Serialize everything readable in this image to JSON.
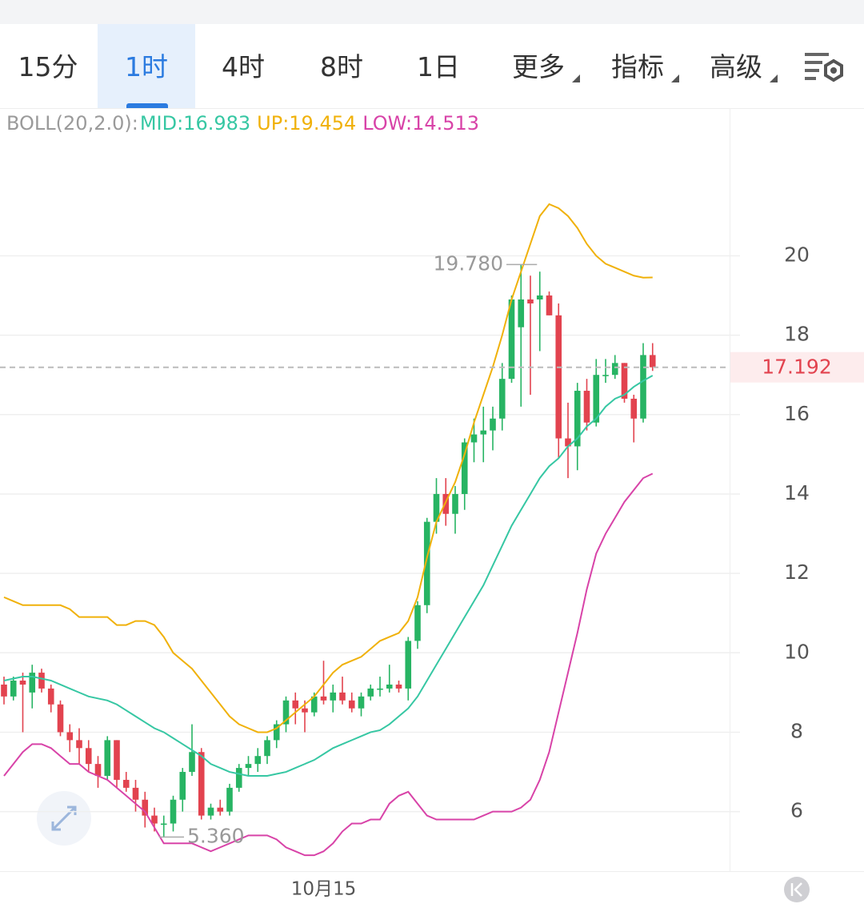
{
  "tabs": {
    "items": [
      "15分",
      "1时",
      "4时",
      "8时",
      "1日",
      "更多",
      "指标",
      "高级"
    ],
    "active": 1
  },
  "chart_data": {
    "type": "candlestick",
    "indicator": "BOLL(20,2.0):",
    "categories": [
      null,
      null,
      null,
      null,
      null,
      null,
      null,
      null,
      null,
      null,
      null,
      null,
      null,
      null,
      null,
      null,
      null,
      null,
      null,
      null,
      null,
      null,
      null,
      null,
      null,
      null,
      null,
      null,
      null,
      null,
      null,
      null,
      null,
      null,
      "10月15",
      null,
      null,
      null,
      null,
      null,
      null,
      null,
      null,
      null,
      null,
      null,
      null,
      null,
      null,
      null,
      null,
      null,
      null,
      null,
      null,
      null,
      null,
      null,
      null,
      null,
      null,
      null,
      null,
      null,
      null,
      null,
      null,
      null,
      null,
      null
    ],
    "open": [
      9.2,
      8.9,
      9.3,
      9.0,
      9.5,
      9.1,
      8.7,
      8.0,
      7.8,
      7.6,
      7.2,
      6.9,
      7.8,
      6.8,
      6.6,
      6.3,
      5.9,
      5.7,
      5.7,
      6.3,
      7.0,
      7.5,
      5.9,
      6.1,
      6.0,
      6.6,
      7.1,
      7.2,
      7.4,
      7.8,
      8.2,
      8.8,
      8.6,
      8.5,
      8.9,
      8.8,
      9.0,
      8.8,
      8.6,
      8.9,
      9.1,
      9.1,
      9.2,
      9.1,
      10.3,
      11.2,
      13.3,
      14.0,
      13.5,
      14.0,
      15.3,
      15.5,
      15.6,
      15.9,
      16.9,
      18.2,
      18.9,
      18.9,
      19.0,
      18.5,
      15.4,
      15.2,
      16.6,
      15.8,
      17.0,
      17.0,
      17.3,
      16.4,
      15.9,
      17.5
    ],
    "high": [
      9.4,
      9.4,
      9.5,
      9.7,
      9.6,
      9.2,
      8.8,
      8.2,
      8.1,
      7.8,
      7.4,
      7.9,
      7.8,
      7.0,
      6.8,
      6.5,
      6.1,
      5.9,
      6.4,
      7.1,
      8.2,
      7.6,
      6.2,
      6.3,
      6.7,
      7.2,
      7.4,
      7.6,
      7.9,
      8.3,
      8.9,
      9.0,
      8.8,
      9.0,
      9.8,
      9.2,
      9.4,
      9.0,
      9.0,
      9.2,
      9.4,
      9.7,
      9.3,
      10.4,
      11.3,
      13.4,
      14.4,
      14.4,
      14.2,
      15.4,
      15.9,
      16.2,
      16.2,
      17.3,
      19.0,
      19.78,
      19.5,
      19.6,
      19.1,
      18.8,
      16.3,
      16.8,
      16.9,
      17.4,
      17.4,
      17.5,
      17.3,
      16.5,
      17.8,
      17.8
    ],
    "low": [
      8.7,
      8.8,
      8.0,
      8.6,
      9.0,
      8.5,
      7.9,
      7.5,
      7.2,
      7.0,
      6.6,
      6.8,
      6.6,
      6.5,
      6.0,
      5.6,
      5.5,
      5.36,
      5.5,
      6.0,
      6.9,
      5.8,
      5.8,
      5.9,
      5.9,
      6.5,
      6.9,
      7.0,
      7.2,
      7.6,
      8.0,
      8.2,
      8.0,
      8.4,
      8.7,
      8.5,
      8.7,
      8.5,
      8.4,
      8.8,
      8.9,
      9.0,
      9.0,
      8.8,
      10.1,
      11.0,
      13.0,
      13.2,
      13.0,
      13.6,
      14.8,
      14.8,
      15.1,
      15.6,
      16.8,
      16.2,
      16.5,
      17.6,
      18.5,
      14.9,
      14.4,
      14.6,
      15.6,
      15.7,
      16.8,
      16.9,
      16.3,
      15.3,
      15.8,
      17.1
    ],
    "close": [
      8.9,
      9.3,
      9.2,
      9.5,
      9.1,
      8.7,
      8.0,
      7.8,
      7.6,
      7.2,
      6.9,
      7.8,
      6.8,
      6.6,
      6.3,
      5.9,
      5.7,
      5.7,
      6.3,
      7.0,
      7.5,
      5.9,
      6.1,
      6.0,
      6.6,
      7.1,
      7.2,
      7.4,
      7.8,
      8.2,
      8.8,
      8.6,
      8.5,
      8.9,
      8.8,
      9.0,
      8.8,
      8.6,
      8.9,
      9.1,
      9.1,
      9.2,
      9.1,
      10.3,
      11.2,
      13.3,
      14.0,
      13.5,
      14.0,
      15.3,
      15.5,
      15.6,
      15.9,
      16.9,
      18.9,
      18.9,
      18.8,
      19.0,
      18.5,
      15.4,
      15.2,
      16.6,
      15.8,
      17.0,
      17.0,
      17.3,
      16.4,
      15.9,
      17.5,
      17.192
    ],
    "up_color": "#27b463",
    "down_color": "#e2434f",
    "series": [
      {
        "name": "MID:16.983",
        "color": "#36c7a3",
        "values": [
          9.3,
          9.35,
          9.4,
          9.4,
          9.35,
          9.3,
          9.2,
          9.1,
          9.0,
          8.9,
          8.85,
          8.8,
          8.7,
          8.55,
          8.4,
          8.25,
          8.1,
          8.0,
          7.85,
          7.7,
          7.55,
          7.4,
          7.2,
          7.1,
          7.0,
          6.95,
          6.9,
          6.9,
          6.9,
          6.95,
          7.0,
          7.1,
          7.2,
          7.3,
          7.45,
          7.6,
          7.7,
          7.8,
          7.9,
          8.0,
          8.05,
          8.2,
          8.4,
          8.6,
          8.9,
          9.3,
          9.7,
          10.1,
          10.5,
          10.9,
          11.3,
          11.7,
          12.2,
          12.7,
          13.2,
          13.6,
          14.0,
          14.4,
          14.7,
          14.9,
          15.2,
          15.4,
          15.7,
          15.9,
          16.2,
          16.4,
          16.5,
          16.7,
          16.85,
          16.983
        ]
      },
      {
        "name": "UP:19.454",
        "color": "#f0b10a",
        "values": [
          11.4,
          11.3,
          11.2,
          11.2,
          11.2,
          11.2,
          11.2,
          11.1,
          10.9,
          10.9,
          10.9,
          10.9,
          10.7,
          10.7,
          10.8,
          10.8,
          10.7,
          10.4,
          10.0,
          9.8,
          9.6,
          9.3,
          9.0,
          8.7,
          8.4,
          8.2,
          8.1,
          8.0,
          8.0,
          8.1,
          8.3,
          8.5,
          8.7,
          8.9,
          9.2,
          9.5,
          9.7,
          9.8,
          9.9,
          10.1,
          10.3,
          10.4,
          10.5,
          10.8,
          11.4,
          12.4,
          13.3,
          13.8,
          14.3,
          15.0,
          15.8,
          16.5,
          17.2,
          18.0,
          18.9,
          19.6,
          20.3,
          21.0,
          21.3,
          21.2,
          21.0,
          20.7,
          20.3,
          20.0,
          19.8,
          19.7,
          19.6,
          19.5,
          19.45,
          19.454
        ]
      },
      {
        "name": "LOW:14.513",
        "color": "#d843a8",
        "values": [
          6.9,
          7.2,
          7.5,
          7.7,
          7.7,
          7.6,
          7.4,
          7.2,
          7.2,
          7.0,
          6.9,
          6.8,
          6.6,
          6.4,
          6.2,
          6.0,
          5.6,
          5.2,
          5.2,
          5.2,
          5.2,
          5.1,
          5.0,
          5.1,
          5.2,
          5.3,
          5.4,
          5.4,
          5.4,
          5.3,
          5.1,
          5.0,
          4.9,
          4.9,
          5.0,
          5.2,
          5.5,
          5.7,
          5.7,
          5.8,
          5.8,
          6.2,
          6.4,
          6.5,
          6.2,
          5.9,
          5.8,
          5.8,
          5.8,
          5.8,
          5.8,
          5.9,
          6.0,
          6.0,
          6.0,
          6.1,
          6.3,
          6.8,
          7.5,
          8.5,
          9.5,
          10.5,
          11.6,
          12.5,
          13.0,
          13.4,
          13.8,
          14.1,
          14.4,
          14.513
        ]
      }
    ],
    "high_label": {
      "value": 19.78,
      "label": "19.780"
    },
    "low_label": {
      "value": 5.36,
      "label": "5.360"
    },
    "last_price": 17.192,
    "ylim": [
      4.5,
      23.7
    ],
    "yticks": [
      6,
      8,
      10,
      12,
      14,
      16,
      18,
      20
    ],
    "grid": true
  }
}
